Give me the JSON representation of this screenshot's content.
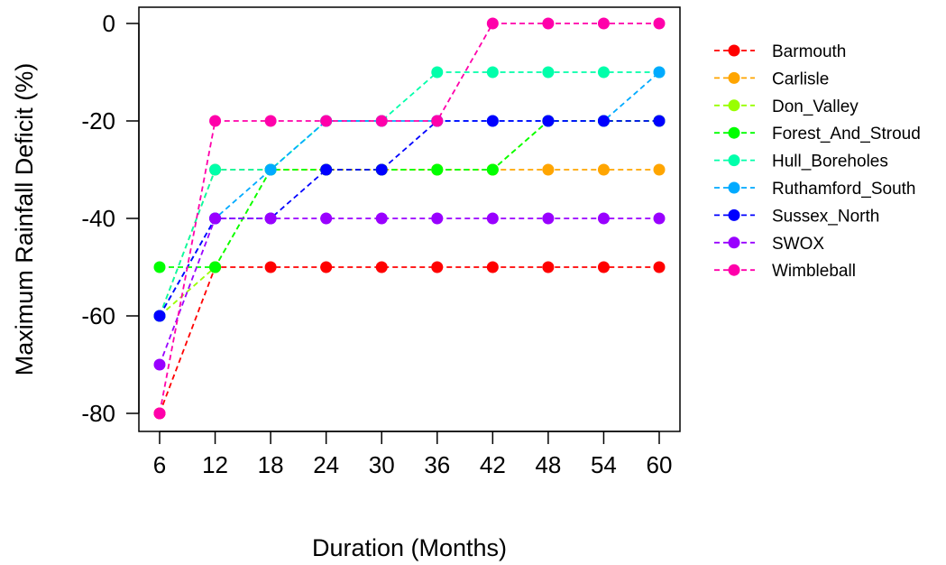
{
  "chart_data": {
    "type": "line",
    "title": "",
    "xlabel": "Duration (Months)",
    "ylabel": "Maximum Rainfall Deficit (%)",
    "x": [
      6,
      12,
      18,
      24,
      30,
      36,
      42,
      48,
      54,
      60
    ],
    "xlim": [
      6,
      60
    ],
    "ylim": [
      -80,
      0
    ],
    "yticks": [
      0,
      -20,
      -40,
      -60,
      -80
    ],
    "grid": false,
    "legend_position": "right",
    "line_style": "dashed",
    "marker": "circle",
    "series": [
      {
        "name": "Barmouth",
        "color": "#FF0000",
        "values": [
          -80,
          -50,
          -50,
          -50,
          -50,
          -50,
          -50,
          -50,
          -50,
          -50
        ]
      },
      {
        "name": "Carlisle",
        "color": "#FFA500",
        "values": [
          -60,
          -30,
          -30,
          -30,
          -30,
          -30,
          -30,
          -30,
          -30,
          -30
        ]
      },
      {
        "name": "Don_Valley",
        "color": "#99FF00",
        "values": [
          -60,
          -50,
          -30,
          -30,
          -30,
          -30,
          -30,
          -20,
          -20,
          -20
        ]
      },
      {
        "name": "Forest_And_Stroud",
        "color": "#00FF00",
        "values": [
          -50,
          -50,
          -30,
          -30,
          -30,
          -30,
          -30,
          -20,
          -20,
          -20
        ]
      },
      {
        "name": "Hull_Boreholes",
        "color": "#00FFAA",
        "values": [
          -60,
          -30,
          -30,
          -20,
          -20,
          -10,
          -10,
          -10,
          -10,
          -10
        ]
      },
      {
        "name": "Ruthamford_South",
        "color": "#00AAFF",
        "values": [
          -60,
          -40,
          -30,
          -20,
          -20,
          -20,
          -20,
          -20,
          -20,
          -10
        ]
      },
      {
        "name": "Sussex_North",
        "color": "#0000FF",
        "values": [
          -60,
          -40,
          -40,
          -30,
          -30,
          -20,
          -20,
          -20,
          -20,
          -20
        ]
      },
      {
        "name": "SWOX",
        "color": "#9900FF",
        "values": [
          -70,
          -40,
          -40,
          -40,
          -40,
          -40,
          -40,
          -40,
          -40,
          -40
        ]
      },
      {
        "name": "Wimbleball",
        "color": "#FF00AA",
        "values": [
          -80,
          -20,
          -20,
          -20,
          -20,
          -20,
          0,
          0,
          0,
          0
        ]
      }
    ]
  }
}
